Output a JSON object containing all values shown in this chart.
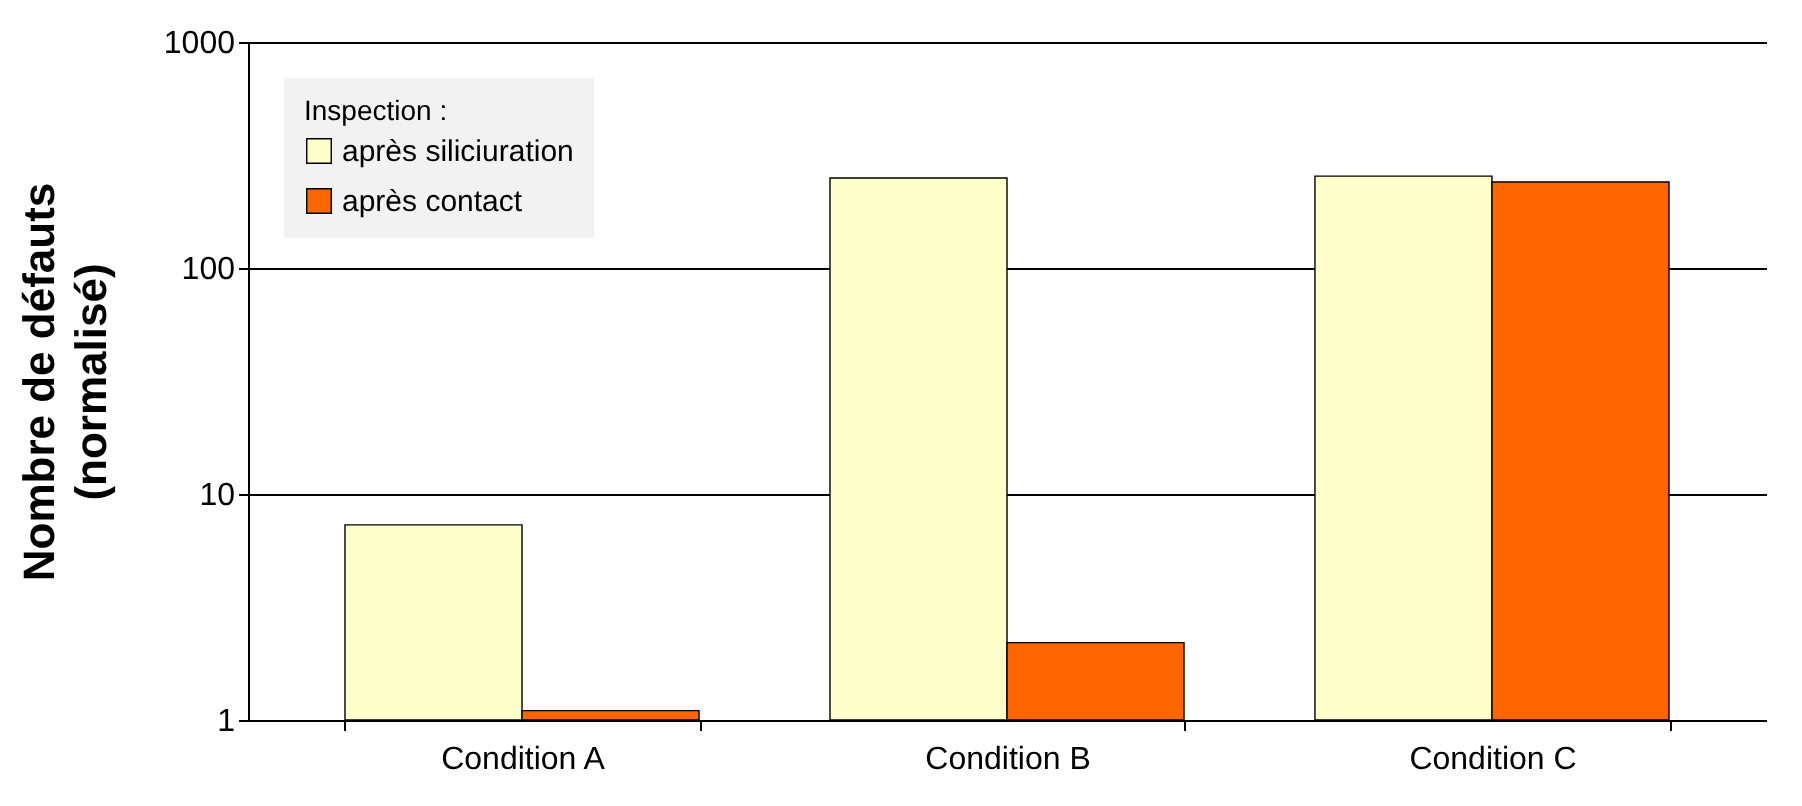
{
  "chart_data": {
    "type": "bar",
    "ylabel": "Nombre de défauts\n(normalisé)",
    "legend_title": "Inspection :",
    "categories": [
      "Condition A",
      "Condition B",
      "Condition C"
    ],
    "series": [
      {
        "name": "après siliciuration",
        "color": "#ffffcc",
        "values": [
          7.3,
          250,
          255
        ]
      },
      {
        "name": "après contact",
        "color": "#ff6600",
        "values": [
          1.1,
          2.2,
          240
        ]
      }
    ],
    "log": true,
    "ylim": [
      1,
      1000
    ],
    "yticks": [
      1,
      10,
      100,
      1000
    ],
    "grid": "y",
    "legend": "top left"
  }
}
